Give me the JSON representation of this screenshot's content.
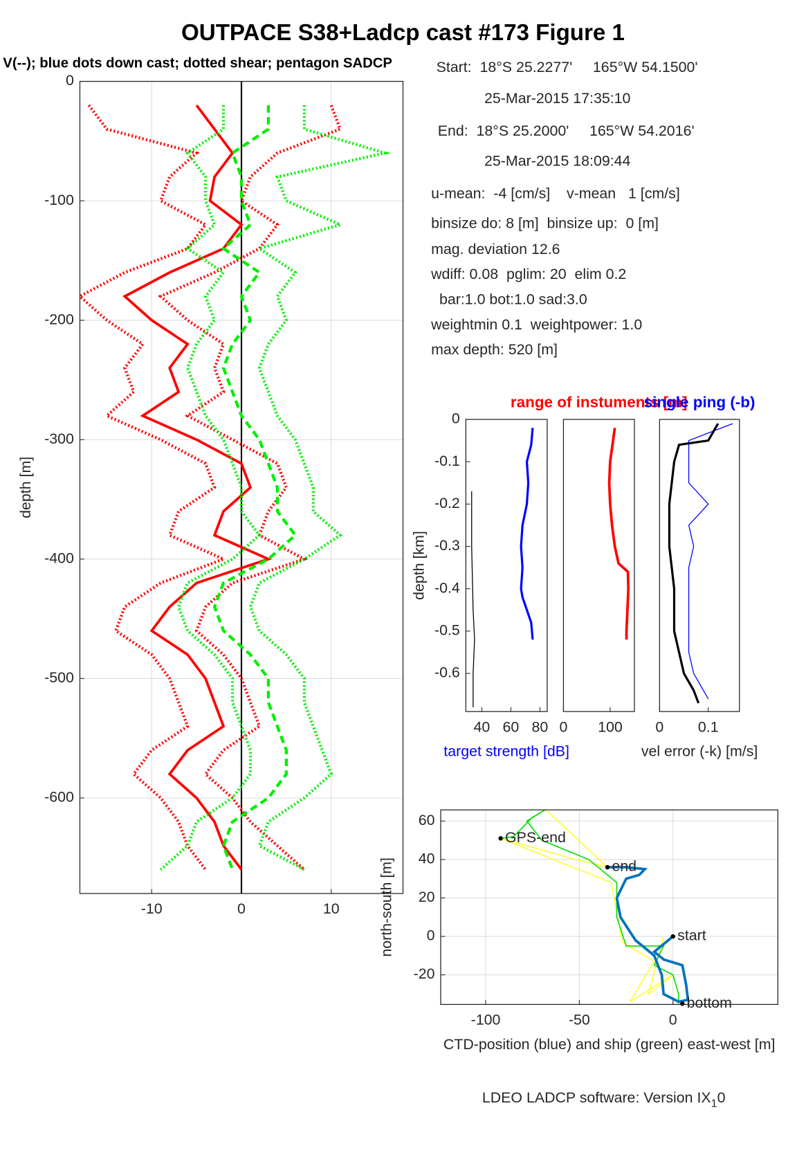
{
  "title": "OUTPACE S38+Ladcp cast #173  Figure 1",
  "subtitle": "V(--); blue dots down cast; dotted shear; pentagon SADCP",
  "info": [
    "Start:  18°S 25.2277'     165°W 54.1500'",
    "25-Mar-2015 17:35:10",
    "End:  18°S 25.2000'     165°W 54.2016'",
    "25-Mar-2015 18:09:44",
    "u-mean:  -4 [cm/s]    v-mean   1 [cm/s]",
    "binsize do: 8 [m]  binsize up:  0 [m]",
    "mag. deviation 12.6",
    "wdiff: 0.08  pglim: 20  elim 0.2",
    "  bar:1.0 bot:1.0 sad:3.0",
    "weightmin 0.1  weightpower: 1.0",
    "max depth: 520 [m]"
  ],
  "footer": {
    "text": "LDEO LADCP software: Version IX",
    "sub": "1",
    "tail": "0"
  },
  "chart_data": [
    {
      "type": "line",
      "ylabel": "depth [m]",
      "xlim": [
        -18,
        18
      ],
      "ylim": [
        -680,
        0
      ],
      "xticks": [
        -10,
        0,
        10
      ],
      "yticks": [
        0,
        -100,
        -200,
        -300,
        -400,
        -500,
        -600
      ],
      "grid": true,
      "zero_line": true,
      "y": [
        -20,
        -40,
        -60,
        -80,
        -100,
        -120,
        -140,
        -160,
        -180,
        -200,
        -220,
        -240,
        -260,
        -280,
        -300,
        -320,
        -340,
        -360,
        -380,
        -400,
        -420,
        -440,
        -460,
        -480,
        -500,
        -520,
        -540,
        -560,
        -580,
        -600,
        -620,
        -640,
        -660
      ],
      "series": [
        {
          "color": "#ff0000",
          "dash": "dotted",
          "width": 4,
          "values": [
            -17,
            -15,
            -5,
            -8,
            -9,
            -4,
            -6,
            -13,
            -18,
            -15,
            -11,
            -13,
            -12,
            -15,
            -9,
            -4,
            -3,
            -7,
            -8,
            -2,
            -9,
            -13,
            -14,
            -10,
            -8,
            -7,
            -6,
            -10,
            -12,
            -9,
            -7,
            -6,
            -4
          ]
        },
        {
          "color": "#ff0000",
          "dash": "dotted",
          "width": 4,
          "values": [
            10,
            11,
            4,
            1,
            0,
            4,
            2,
            -3,
            -9,
            -6,
            -2,
            -3,
            -2,
            -6,
            -1,
            4,
            5,
            3,
            2,
            7,
            -1,
            -4,
            -5,
            -2,
            0,
            1,
            2,
            -2,
            -4,
            -1,
            1,
            4,
            7
          ]
        },
        {
          "color": "#ff0000",
          "dash": "solid",
          "width": 3.5,
          "values": [
            -5,
            -3,
            -1,
            -3,
            -3.5,
            0,
            -2,
            -8,
            -13,
            -10,
            -6,
            -8,
            -7,
            -11,
            -5,
            0,
            1,
            -2,
            -3,
            3,
            -5,
            -8,
            -10,
            -6,
            -4,
            -3,
            -2,
            -6,
            -8,
            -5,
            -3,
            -2,
            0
          ]
        },
        {
          "color": "#00ee00",
          "dash": "dotted",
          "width": 4,
          "values": [
            -2,
            -2,
            -6,
            -4,
            -4,
            -3,
            -6,
            -2,
            -4,
            -3,
            -5,
            -6,
            -5,
            -4,
            -2,
            -1,
            0,
            0,
            2,
            -1,
            -6,
            -7,
            -6,
            -3,
            -1,
            -1,
            0,
            1,
            1,
            -1,
            -5,
            -6,
            -9
          ]
        },
        {
          "color": "#00ee00",
          "dash": "dotted",
          "width": 4,
          "values": [
            7,
            7,
            16,
            4,
            5,
            11,
            2,
            6,
            4,
            5,
            3,
            2,
            3,
            4,
            6,
            7,
            8,
            8,
            11,
            7,
            2,
            1,
            2,
            5,
            7,
            7,
            8,
            9,
            10,
            7,
            3,
            2,
            7
          ]
        },
        {
          "color": "#00ee00",
          "dash": "dashed",
          "width": 4,
          "values": [
            3,
            3,
            -1,
            0,
            0,
            1,
            -2,
            2,
            0,
            1,
            -1,
            -2,
            -1,
            0,
            2,
            3,
            4,
            4,
            6,
            3,
            -2,
            -3,
            -2,
            1,
            3,
            3,
            4,
            5,
            5,
            3,
            -1,
            -2,
            -1
          ]
        }
      ]
    },
    {
      "type": "line",
      "ylabel": "depth [km]",
      "xlabel": "target strength [dB]",
      "xlabel_color": "#0000ff",
      "xlim": [
        29,
        85
      ],
      "ylim": [
        -0.69,
        0
      ],
      "xticks": [
        40,
        60,
        80
      ],
      "yticks": [
        0,
        -0.1,
        -0.2,
        -0.3,
        -0.4,
        -0.5,
        -0.6
      ],
      "series": [
        {
          "color": "#0000ff",
          "width": 3,
          "y": [
            -0.02,
            -0.06,
            -0.1,
            -0.15,
            -0.2,
            -0.25,
            -0.3,
            -0.35,
            -0.4,
            -0.42,
            -0.45,
            -0.48,
            -0.52
          ],
          "values": [
            75,
            74,
            71,
            72,
            71,
            68,
            67,
            68,
            67,
            68,
            71,
            74,
            75
          ]
        },
        {
          "color": "#000000",
          "width": 1.2,
          "y": [
            -0.17,
            -0.3,
            -0.45,
            -0.52,
            -0.6,
            -0.68
          ],
          "values": [
            33,
            33,
            34,
            35,
            34,
            34
          ]
        }
      ]
    },
    {
      "type": "line",
      "title": "range of instuments [m]",
      "title_color": "#ff0000",
      "xlim": [
        0,
        152
      ],
      "ylim": [
        -0.69,
        0
      ],
      "xticks": [
        0,
        100
      ],
      "series": [
        {
          "color": "#ff0000",
          "width": 3.5,
          "y": [
            -0.02,
            -0.06,
            -0.1,
            -0.15,
            -0.2,
            -0.25,
            -0.3,
            -0.34,
            -0.36,
            -0.4,
            -0.45,
            -0.5,
            -0.52
          ],
          "values": [
            110,
            105,
            100,
            98,
            100,
            104,
            110,
            118,
            138,
            139,
            137,
            135,
            135
          ]
        }
      ]
    },
    {
      "type": "line",
      "title": "single ping (-b)",
      "title_color": "#0000ff",
      "xlabel": "vel error (-k) [m/s]",
      "xlim": [
        0,
        0.164
      ],
      "ylim": [
        -0.69,
        0
      ],
      "xticks": [
        0,
        0.1
      ],
      "series": [
        {
          "color": "#0000ff",
          "width": 1.2,
          "y": [
            -0.01,
            -0.05,
            -0.1,
            -0.15,
            -0.2,
            -0.25,
            -0.3,
            -0.35,
            -0.4,
            -0.45,
            -0.5,
            -0.55,
            -0.6,
            -0.64,
            -0.66
          ],
          "values": [
            0.15,
            0.06,
            0.06,
            0.06,
            0.1,
            0.06,
            0.07,
            0.06,
            0.06,
            0.06,
            0.06,
            0.06,
            0.07,
            0.09,
            0.1
          ]
        },
        {
          "color": "#000000",
          "width": 3,
          "y": [
            -0.01,
            -0.05,
            -0.06,
            -0.1,
            -0.2,
            -0.3,
            -0.4,
            -0.5,
            -0.55,
            -0.6,
            -0.64,
            -0.67
          ],
          "values": [
            0.12,
            0.1,
            0.04,
            0.03,
            0.02,
            0.02,
            0.03,
            0.03,
            0.04,
            0.05,
            0.07,
            0.08
          ]
        }
      ]
    },
    {
      "type": "line",
      "xlabel": "CTD-position (blue) and ship (green) east-west [m]",
      "ylabel": "north-south [m]",
      "xlim": [
        -124,
        56
      ],
      "ylim": [
        -35.4,
        65.8
      ],
      "xticks": [
        -100,
        -50,
        0
      ],
      "yticks": [
        -20,
        0,
        20,
        40,
        60
      ],
      "grid": true,
      "series": [
        {
          "color": "#ffff00",
          "width": 1.2,
          "x": [
            -68,
            -35,
            -52,
            -92,
            -33,
            -27,
            -10,
            -23,
            0,
            -13,
            -5
          ],
          "values": [
            66,
            36,
            40,
            51,
            28,
            -3,
            -13,
            -34,
            -20,
            -30,
            0
          ]
        },
        {
          "color": "#00dd00",
          "width": 1.5,
          "x": [
            3,
            3,
            0,
            -10,
            -5,
            -25,
            -30,
            -30,
            -45,
            -70,
            -78,
            -68,
            -75,
            -85,
            -92
          ],
          "values": [
            -35,
            -30,
            -20,
            -15,
            -5,
            -5,
            10,
            28,
            40,
            50,
            60,
            66,
            62,
            52,
            51
          ]
        },
        {
          "color": "#0072bd",
          "width": 3.5,
          "x": [
            0,
            -10,
            -5,
            5,
            7,
            8,
            3,
            -5,
            -6,
            -10,
            -20,
            -28,
            -30,
            -25,
            -18,
            -15,
            -25,
            -35
          ],
          "values": [
            0,
            -8,
            -12,
            -15,
            -25,
            -33,
            -34,
            -30,
            -20,
            -10,
            -2,
            10,
            20,
            30,
            32,
            35,
            36,
            36
          ]
        }
      ],
      "annotations": [
        {
          "text": "GPS-end",
          "x": -92,
          "y": 51
        },
        {
          "text": "end",
          "x": -35,
          "y": 36
        },
        {
          "text": "start",
          "x": 0,
          "y": 0
        },
        {
          "text": "bottom",
          "x": 5,
          "y": -35
        }
      ]
    }
  ]
}
